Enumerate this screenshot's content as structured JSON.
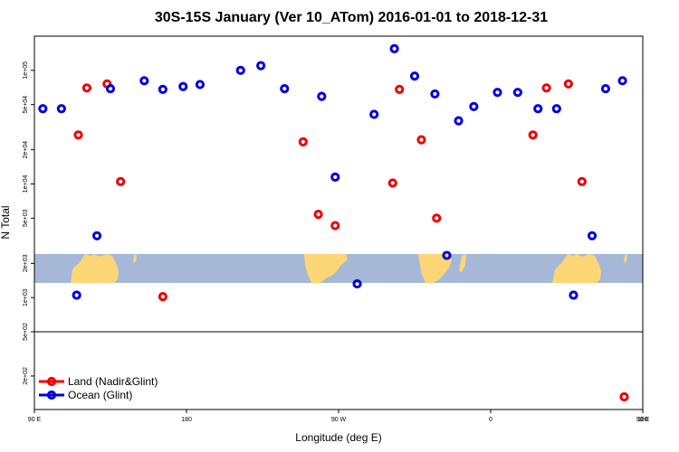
{
  "chart_data": {
    "type": "scatter",
    "title": "30S-15S January (Ver 10_ATom)   2016-01-01 to 2018-12-31",
    "xlabel": "Longitude (deg E)",
    "ylabel": "N Total",
    "y_scale": "log",
    "xlim": [
      90,
      450
    ],
    "ylim_upper_panel": [
      500,
      200000
    ],
    "ylim_lower_panel": [
      100,
      500
    ],
    "x_ticks": [
      {
        "value": 90,
        "label": "90 E"
      },
      {
        "value": 180,
        "label": "180"
      },
      {
        "value": 270,
        "label": "90 W"
      },
      {
        "value": 360,
        "label": "0"
      },
      {
        "value": 450,
        "label": "90 E"
      },
      {
        "value": 540,
        "label": "180"
      }
    ],
    "y_ticks_upper": [
      {
        "value": 100000,
        "label": "1e+05"
      },
      {
        "value": 50000,
        "label": "5e+04"
      },
      {
        "value": 20000,
        "label": "2e+04"
      },
      {
        "value": 10000,
        "label": "1e+04"
      },
      {
        "value": 5000,
        "label": "5e+03"
      },
      {
        "value": 2000,
        "label": "2e+03"
      },
      {
        "value": 1000,
        "label": "1e+03"
      },
      {
        "value": 500,
        "label": "5e+02"
      }
    ],
    "y_ticks_lower": [
      {
        "value": 500,
        "label": "5e+02"
      },
      {
        "value": 200,
        "label": "2e+02"
      }
    ],
    "legend": {
      "placement": "bottom-left",
      "entries": [
        {
          "name": "Land (Nadir&Glint)",
          "color": "#ee0000"
        },
        {
          "name": "Ocean (Glint)",
          "color": "#0000dd"
        }
      ]
    },
    "map_strip": {
      "ocean_color": "#a5b8d8",
      "land_color": "#fdd675"
    },
    "series": [
      {
        "name": "Land (Nadir&Glint)",
        "color": "#ee0000",
        "points": [
          {
            "x": 116,
            "y": 27000
          },
          {
            "x": 121,
            "y": 70000
          },
          {
            "x": 133,
            "y": 76000
          },
          {
            "x": 141,
            "y": 10500
          },
          {
            "x": 166,
            "y": 1020
          },
          {
            "x": 249,
            "y": 23500
          },
          {
            "x": 258,
            "y": 5400
          },
          {
            "x": 268,
            "y": 4300
          },
          {
            "x": 302,
            "y": 10200
          },
          {
            "x": 306,
            "y": 68000
          },
          {
            "x": 319,
            "y": 24500
          },
          {
            "x": 328,
            "y": 5000
          },
          {
            "x": 385,
            "y": 27000
          },
          {
            "x": 393,
            "y": 70000
          },
          {
            "x": 406,
            "y": 76000
          },
          {
            "x": 414,
            "y": 10500
          },
          {
            "x": 439,
            "y": 130
          }
        ]
      },
      {
        "name": "Ocean (Glint)",
        "color": "#0000dd",
        "points": [
          {
            "x": 95,
            "y": 46000
          },
          {
            "x": 106,
            "y": 46000
          },
          {
            "x": 115,
            "y": 1050
          },
          {
            "x": 127,
            "y": 3500
          },
          {
            "x": 135,
            "y": 69000
          },
          {
            "x": 155,
            "y": 81000
          },
          {
            "x": 166,
            "y": 68000
          },
          {
            "x": 178,
            "y": 72000
          },
          {
            "x": 188,
            "y": 75000
          },
          {
            "x": 212,
            "y": 100000
          },
          {
            "x": 224,
            "y": 110000
          },
          {
            "x": 238,
            "y": 69000
          },
          {
            "x": 260,
            "y": 59000
          },
          {
            "x": 268,
            "y": 11500
          },
          {
            "x": 281,
            "y": 1320
          },
          {
            "x": 291,
            "y": 41000
          },
          {
            "x": 303,
            "y": 155000
          },
          {
            "x": 315,
            "y": 89000
          },
          {
            "x": 327,
            "y": 62000
          },
          {
            "x": 334,
            "y": 2350
          },
          {
            "x": 341,
            "y": 36000
          },
          {
            "x": 350,
            "y": 48000
          },
          {
            "x": 364,
            "y": 64000
          },
          {
            "x": 376,
            "y": 64000
          },
          {
            "x": 388,
            "y": 46000
          },
          {
            "x": 399,
            "y": 46000
          },
          {
            "x": 409,
            "y": 1050
          },
          {
            "x": 420,
            "y": 3500
          },
          {
            "x": 428,
            "y": 69000
          },
          {
            "x": 438,
            "y": 81000
          }
        ]
      }
    ]
  }
}
